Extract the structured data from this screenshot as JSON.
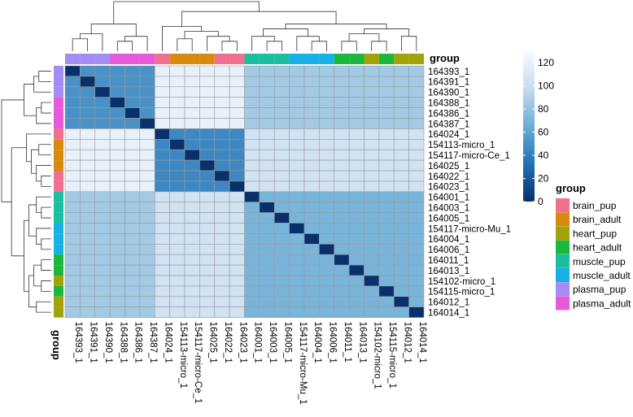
{
  "chart_data": {
    "type": "heatmap",
    "title": "",
    "samples": [
      "164393_1",
      "164391_1",
      "164390_1",
      "164388_1",
      "164386_1",
      "164387_1",
      "164024_1",
      "154113-micro_1",
      "154117-micro-Ce_1",
      "164025_1",
      "164022_1",
      "164023_1",
      "164001_1",
      "164003_1",
      "164005_1",
      "154117-micro-Mu_1",
      "164004_1",
      "164006_1",
      "164011_1",
      "164013_1",
      "154102-micro_1",
      "154115-micro_1",
      "164012_1",
      "164014_1"
    ],
    "sample_groups": [
      "plasma_pup",
      "plasma_pup",
      "plasma_pup",
      "plasma_adult",
      "plasma_adult",
      "plasma_adult",
      "brain_pup",
      "brain_adult",
      "brain_adult",
      "brain_adult",
      "brain_pup",
      "brain_pup",
      "muscle_pup",
      "muscle_pup",
      "muscle_pup",
      "muscle_adult",
      "muscle_adult",
      "muscle_adult",
      "heart_adult",
      "heart_adult",
      "heart_pup",
      "heart_adult",
      "heart_pup",
      "heart_pup"
    ],
    "annotation_label": "group",
    "clusters": [
      {
        "samples": [
          0,
          1,
          2,
          3,
          4,
          5
        ],
        "within": 50,
        "self_within": 0
      },
      {
        "samples": [
          6,
          7,
          8,
          9,
          10,
          11
        ],
        "within": 45,
        "self_within": 0
      },
      {
        "samples": [
          12,
          13,
          14,
          15,
          16,
          17,
          18,
          19,
          20,
          21,
          22,
          23
        ],
        "within": 70,
        "self_within": 0
      }
    ],
    "between_cluster_values": [
      [
        0,
        120,
        85
      ],
      [
        120,
        0,
        105
      ],
      [
        85,
        105,
        0
      ]
    ],
    "diagonal_value": 0,
    "colorbar": {
      "min": 0,
      "max": 130,
      "ticks": [
        0,
        20,
        40,
        60,
        80,
        100,
        120
      ],
      "colors": [
        "#08306b",
        "#2171b5",
        "#6baed6",
        "#c6dbef",
        "#f7fbff"
      ]
    },
    "legend": {
      "title": "group",
      "items": [
        {
          "label": "brain_pup",
          "color": "#f0708f"
        },
        {
          "label": "brain_adult",
          "color": "#d88a0f"
        },
        {
          "label": "heart_pup",
          "color": "#a2a20a"
        },
        {
          "label": "heart_adult",
          "color": "#1bb83d"
        },
        {
          "label": "muscle_pup",
          "color": "#1bbfa0"
        },
        {
          "label": "muscle_adult",
          "color": "#18b1e6"
        },
        {
          "label": "plasma_pup",
          "color": "#a38cf4"
        },
        {
          "label": "plasma_adult",
          "color": "#e45ad8"
        }
      ]
    }
  }
}
